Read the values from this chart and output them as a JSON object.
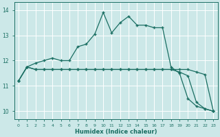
{
  "xlabel": "Humidex (Indice chaleur)",
  "xlim": [
    -0.5,
    23.5
  ],
  "ylim": [
    9.7,
    14.3
  ],
  "xticks": [
    0,
    1,
    2,
    3,
    4,
    5,
    6,
    7,
    8,
    9,
    10,
    11,
    12,
    13,
    14,
    15,
    16,
    17,
    18,
    19,
    20,
    21,
    22,
    23
  ],
  "yticks": [
    10,
    11,
    12,
    13,
    14
  ],
  "background_color": "#cce8e8",
  "grid_color": "#ffffff",
  "line_color": "#1a6e62",
  "line1_x": [
    0,
    1,
    2,
    3,
    4,
    5,
    6,
    7,
    8,
    9,
    10,
    11,
    12,
    13,
    14,
    15,
    16,
    17,
    18,
    19,
    20,
    21,
    22,
    23
  ],
  "line1_y": [
    11.2,
    11.75,
    11.9,
    12.0,
    12.1,
    12.0,
    12.0,
    12.55,
    12.65,
    13.05,
    13.9,
    13.1,
    13.5,
    13.75,
    13.4,
    13.4,
    13.3,
    13.3,
    11.75,
    11.5,
    10.5,
    10.2,
    10.1,
    10.0
  ],
  "line2_x": [
    0,
    1,
    2,
    3,
    4,
    5,
    6,
    7,
    8,
    9,
    10,
    11,
    12,
    13,
    14,
    15,
    16,
    17,
    18,
    19,
    20,
    21,
    22,
    23
  ],
  "line2_y": [
    11.2,
    11.75,
    11.65,
    11.65,
    11.65,
    11.65,
    11.65,
    11.65,
    11.65,
    11.65,
    11.65,
    11.65,
    11.65,
    11.65,
    11.65,
    11.65,
    11.65,
    11.65,
    11.65,
    11.55,
    11.4,
    10.35,
    10.1,
    10.0
  ],
  "line3_x": [
    0,
    1,
    2,
    3,
    4,
    5,
    6,
    7,
    8,
    9,
    10,
    11,
    12,
    13,
    14,
    15,
    16,
    17,
    18,
    19,
    20,
    21,
    22,
    23
  ],
  "line3_y": [
    11.2,
    11.75,
    11.65,
    11.65,
    11.65,
    11.65,
    11.65,
    11.65,
    11.65,
    11.65,
    11.65,
    11.65,
    11.65,
    11.65,
    11.65,
    11.65,
    11.65,
    11.65,
    11.65,
    11.65,
    11.65,
    11.55,
    11.45,
    10.0
  ]
}
